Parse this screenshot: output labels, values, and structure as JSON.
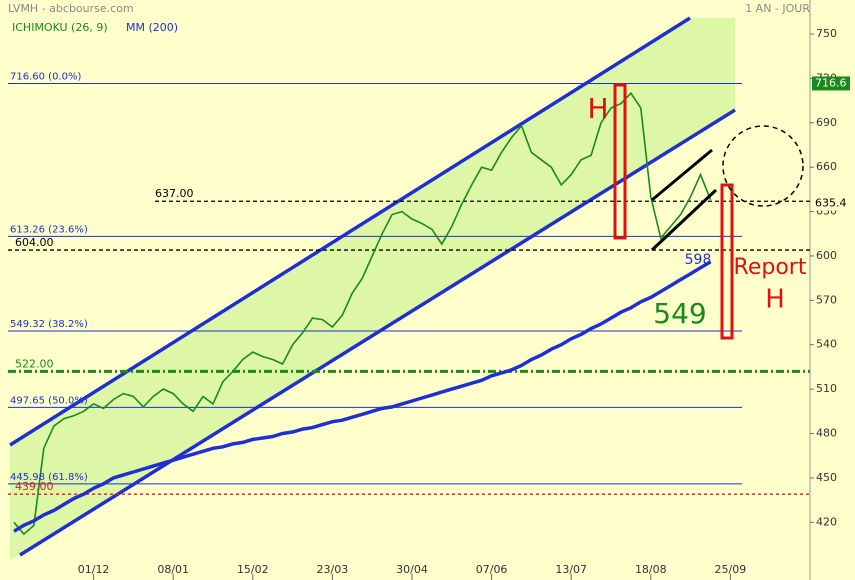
{
  "chart_data": {
    "type": "line",
    "title": "LVMH - abcbourse.com",
    "subtitle": "1 AN - JOUR",
    "categories": [
      null,
      null,
      null,
      null,
      null,
      null,
      null,
      null,
      "01/12",
      null,
      null,
      null,
      null,
      null,
      null,
      null,
      "08/01",
      null,
      null,
      null,
      null,
      null,
      null,
      null,
      "15/02",
      null,
      null,
      null,
      null,
      null,
      null,
      null,
      "23/03",
      null,
      null,
      null,
      null,
      null,
      null,
      null,
      "30/04",
      null,
      null,
      null,
      null,
      null,
      null,
      null,
      "07/06",
      null,
      null,
      null,
      null,
      null,
      null,
      null,
      "13/07",
      null,
      null,
      null,
      null,
      null,
      null,
      null,
      "18/08",
      null,
      null,
      null,
      null,
      null,
      null,
      null,
      "25/09"
    ],
    "series": [
      {
        "name": "ICHIMOKU (26, 9)",
        "color": "#1a8a1a",
        "values": [
          420,
          412,
          418,
          470,
          485,
          490,
          492,
          495,
          500,
          497,
          503,
          507,
          505,
          498,
          505,
          510,
          507,
          500,
          495,
          505,
          500,
          515,
          522,
          530,
          535,
          532,
          530,
          527,
          540,
          548,
          558,
          557,
          552,
          560,
          575,
          585,
          600,
          615,
          628,
          630,
          625,
          622,
          618,
          608,
          620,
          635,
          648,
          660,
          658,
          670,
          680,
          688,
          670,
          665,
          660,
          648,
          655,
          665,
          668,
          690,
          700,
          703,
          710,
          700,
          640,
          612,
          620,
          628,
          640,
          655,
          638,
          null,
          null
        ]
      },
      {
        "name": "MM (200)",
        "color": "#1f2fd0",
        "values": [
          414,
          418,
          421,
          425,
          428,
          432,
          436,
          439,
          443,
          446,
          450,
          452,
          454,
          456,
          458,
          460,
          462,
          464,
          466,
          468,
          470,
          471,
          473,
          474,
          476,
          477,
          478,
          480,
          481,
          483,
          484,
          486,
          488,
          489,
          491,
          493,
          495,
          497,
          498,
          500,
          502,
          504,
          506,
          508,
          510,
          512,
          514,
          516,
          519,
          521,
          523,
          526,
          530,
          533,
          537,
          540,
          544,
          547,
          551,
          554,
          558,
          562,
          565,
          569,
          572,
          576,
          580,
          584,
          588,
          592,
          596,
          null,
          null
        ]
      }
    ],
    "ylim": [
      381,
      773
    ],
    "yticks": [
      420,
      450,
      480,
      510,
      540,
      570,
      600,
      630,
      660,
      690,
      720,
      750
    ],
    "levels": [
      {
        "value": 716.6,
        "label": "716.60  (0.0%)"
      },
      {
        "value": 613.26,
        "label": "613.26  (23.6%)"
      },
      {
        "value": 549.32,
        "label": "549.32  (38.2%)"
      },
      {
        "value": 497.65,
        "label": "497.65  (50.0%)"
      },
      {
        "value": 445.98,
        "label": "445.98  (61.8%)"
      }
    ],
    "lines": [
      {
        "value": 637,
        "label": "637.00",
        "color": "#000000"
      },
      {
        "value": 604,
        "label": "604.00",
        "color": "#000000"
      },
      {
        "value": 522,
        "label": "522.00",
        "color": "#1a8a1a"
      },
      {
        "value": 439,
        "label": "439.00",
        "color": "#d02020"
      }
    ],
    "annotations": {
      "h1": "H",
      "target": "549",
      "mm": "598",
      "report": "Report",
      "h2": "H"
    },
    "price_tags": [
      {
        "value": 716.6,
        "label": "716.6"
      },
      {
        "value": 635.4,
        "label": "635.4"
      }
    ]
  }
}
